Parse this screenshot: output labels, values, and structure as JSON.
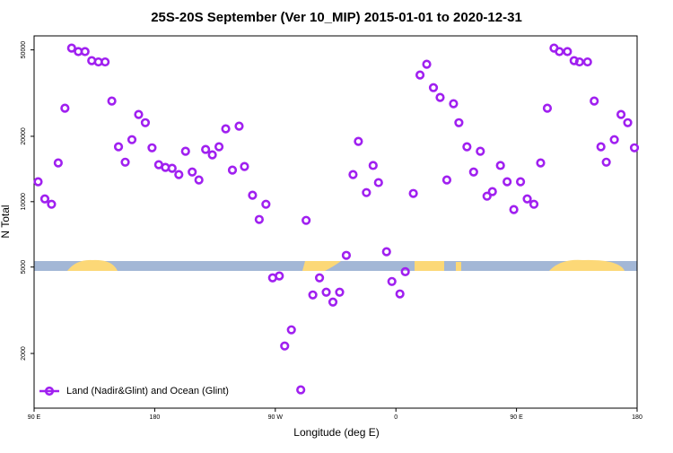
{
  "chart_data": {
    "type": "scatter",
    "title": "25S-20S September (Ver 10_MIP)   2015-01-01 to 2020-12-31",
    "x_label": "Longitude (deg E)",
    "y_label": "N Total",
    "log_scale": true,
    "legend_position": "bottom-left",
    "xlim": [
      90,
      540
    ],
    "xticks": [
      {
        "value": 90,
        "label": "90 E"
      },
      180,
      {
        "value": 270,
        "label": "90 W"
      },
      {
        "value": 360,
        "label": "0"
      },
      {
        "value": 450,
        "label": "90 E"
      },
      {
        "value": 540,
        "label": "180"
      }
    ],
    "ylim": [
      1120,
      58000
    ],
    "yticks": [
      2000,
      5000,
      10000,
      20000,
      50000
    ],
    "x": [
      93,
      98,
      103,
      108,
      113,
      118,
      123,
      128,
      133,
      138,
      143,
      148,
      153,
      158,
      163,
      168,
      173,
      178,
      183,
      188,
      193,
      198,
      203,
      208,
      213,
      218,
      223,
      228,
      233,
      238,
      243,
      247,
      253,
      258,
      263,
      268,
      273,
      277,
      282,
      289,
      293,
      298,
      303,
      308,
      313,
      318,
      323,
      328,
      332,
      338,
      343,
      347,
      353,
      357,
      363,
      367,
      373,
      378,
      383,
      388,
      393,
      398,
      403,
      407,
      413,
      418,
      423,
      428,
      432,
      438,
      443,
      448,
      453,
      458,
      463,
      468,
      473,
      478,
      482,
      488,
      493,
      497,
      503,
      508,
      513,
      517,
      523,
      528,
      533,
      538
    ],
    "series": [
      {
        "name": "Land (Nadir&Glint) and Ocean (Glint)",
        "color": "#a020f0",
        "values": [
          12350,
          10300,
          9730,
          15080,
          26940,
          50950,
          49100,
          49100,
          44600,
          44000,
          44000,
          29070,
          17900,
          15200,
          19300,
          25200,
          23100,
          17700,
          14800,
          14380,
          14240,
          13330,
          17060,
          13700,
          12590,
          17400,
          16430,
          17900,
          21650,
          13980,
          22280,
          14520,
          10710,
          8280,
          9730,
          4460,
          4550,
          2165,
          2570,
          1360,
          8200,
          3720,
          4460,
          3830,
          3450,
          3830,
          5660,
          13330,
          18950,
          11010,
          14680,
          12240,
          5880,
          4290,
          3760,
          4760,
          10910,
          38300,
          42940,
          33500,
          30200,
          12590,
          28250,
          23100,
          17900,
          13700,
          17060,
          10600,
          11120,
          14680,
          12350,
          9200,
          12350,
          10300,
          9730,
          15080,
          26940,
          50950,
          49100,
          49100,
          44600,
          44000,
          44000,
          29070,
          17900,
          15200,
          19300,
          25200,
          23100,
          17700
        ]
      }
    ]
  }
}
